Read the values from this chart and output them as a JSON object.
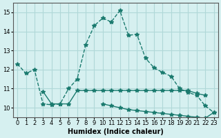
{
  "xlabel": "Humidex (Indice chaleur)",
  "ylabel": "",
  "background_color": "#d6f0f0",
  "grid_color": "#b0d8d8",
  "line_color": "#1a7a6e",
  "x_values": [
    0,
    1,
    2,
    3,
    4,
    5,
    6,
    7,
    8,
    9,
    10,
    11,
    12,
    13,
    14,
    15,
    16,
    17,
    18,
    19,
    20,
    21,
    22,
    23
  ],
  "line1_y": [
    12.3,
    11.8,
    12.0,
    10.2,
    10.15,
    10.2,
    11.0,
    11.5,
    13.3,
    14.3,
    14.7,
    14.5,
    15.1,
    13.8,
    13.85,
    12.6,
    12.1,
    11.85,
    11.65,
    11.0,
    10.8,
    10.65,
    10.1,
    9.75
  ],
  "line2_y": [
    null,
    null,
    null,
    10.85,
    10.2,
    10.2,
    10.2,
    10.9,
    10.9,
    10.9,
    10.9,
    10.9,
    10.9,
    10.9,
    10.9,
    10.9,
    10.9,
    10.9,
    10.9,
    10.9,
    10.9,
    10.75,
    10.65,
    null
  ],
  "line3_y": [
    null,
    null,
    null,
    null,
    null,
    null,
    null,
    null,
    null,
    null,
    10.2,
    10.1,
    10.0,
    9.9,
    9.85,
    9.8,
    9.75,
    9.7,
    9.65,
    9.6,
    9.55,
    9.5,
    9.45,
    9.75
  ],
  "xlim": [
    -0.5,
    23.5
  ],
  "ylim": [
    9.5,
    15.5
  ],
  "yticks": [
    10,
    11,
    12,
    13,
    14,
    15
  ],
  "xticks": [
    0,
    1,
    2,
    3,
    4,
    5,
    6,
    7,
    8,
    9,
    10,
    11,
    12,
    13,
    14,
    15,
    16,
    17,
    18,
    19,
    20,
    21,
    22,
    23
  ]
}
